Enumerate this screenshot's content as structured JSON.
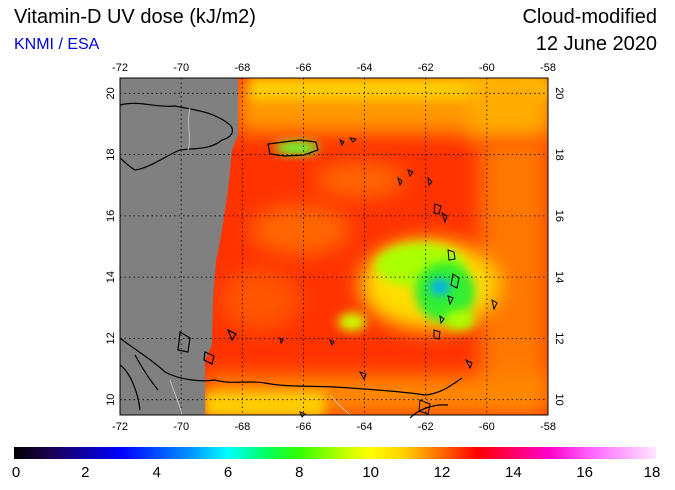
{
  "header": {
    "title": "Vitamin-D UV dose (kJ/m2)",
    "subtitle": "KNMI / ESA",
    "product": "Cloud-modified",
    "date": "12 June 2020"
  },
  "map": {
    "lon_range": [
      -72,
      -58
    ],
    "lat_range": [
      9.5,
      20.5
    ],
    "lon_ticks": [
      "-72",
      "-70",
      "-68",
      "-66",
      "-64",
      "-62",
      "-60",
      "-58"
    ],
    "lat_ticks": [
      "10",
      "12",
      "14",
      "16",
      "18",
      "20"
    ],
    "grid": true,
    "land_outline_color": "#000000",
    "no_data_color": "#808080"
  },
  "colorbar": {
    "labels": [
      "0",
      "2",
      "4",
      "6",
      "8",
      "10",
      "12",
      "14",
      "16",
      "18"
    ],
    "min": 0,
    "max": 18
  }
}
